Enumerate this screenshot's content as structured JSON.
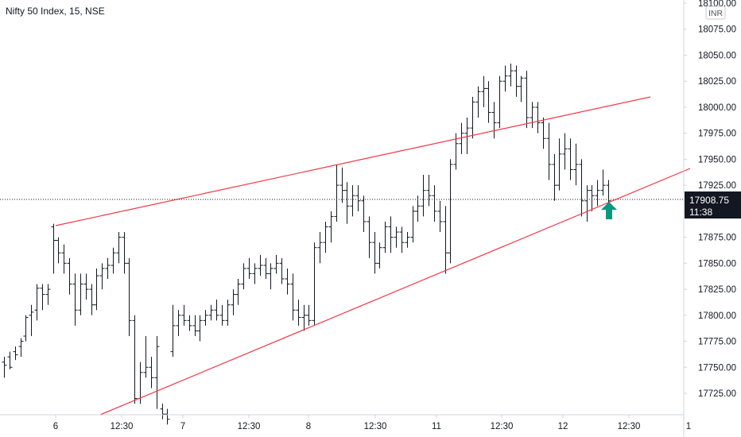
{
  "chart_data": {
    "type": "ohlc",
    "title": "Nifty 50 Index, 15, NSE",
    "currency": "INR",
    "last_price": "17908.75",
    "countdown": "11:38",
    "ylim": [
      17704,
      18103
    ],
    "y_ticks": [
      "18100.00",
      "18075.00",
      "18050.00",
      "18025.00",
      "18000.00",
      "17975.00",
      "17950.00",
      "17925.00",
      "17900.00",
      "17875.00",
      "17850.00",
      "17825.00",
      "17800.00",
      "17775.00",
      "17750.00",
      "17725.00"
    ],
    "x_ticks": [
      "6",
      "12:30",
      "7",
      "12:30",
      "8",
      "12:30",
      "11",
      "12:30",
      "12",
      "12:30",
      "1"
    ],
    "grid": false,
    "colors": {
      "bars": "#131722",
      "trendlines": "#f23645",
      "arrow": "#089981",
      "last_price_label": "#131722"
    },
    "annotation": "up-arrow-icon",
    "ohlc_bars": [
      [
        17755,
        17760,
        17740,
        17752
      ],
      [
        17760,
        17765,
        17748,
        17750
      ],
      [
        17765,
        17770,
        17757,
        17762
      ],
      [
        17770,
        17778,
        17760,
        17775
      ],
      [
        17780,
        17800,
        17775,
        17798
      ],
      [
        17800,
        17810,
        17780,
        17803
      ],
      [
        17805,
        17830,
        17795,
        17826
      ],
      [
        17826,
        17830,
        17805,
        17820
      ],
      [
        17820,
        17830,
        17810,
        17825
      ],
      [
        17885,
        17888,
        17840,
        17872
      ],
      [
        17872,
        17875,
        17850,
        17860
      ],
      [
        17860,
        17868,
        17840,
        17850
      ],
      [
        17850,
        17855,
        17820,
        17830
      ],
      [
        17830,
        17840,
        17790,
        17805
      ],
      [
        17805,
        17840,
        17800,
        17830
      ],
      [
        17830,
        17840,
        17815,
        17825
      ],
      [
        17825,
        17830,
        17800,
        17810
      ],
      [
        17810,
        17845,
        17805,
        17838
      ],
      [
        17838,
        17850,
        17825,
        17845
      ],
      [
        17845,
        17855,
        17835,
        17848
      ],
      [
        17848,
        17865,
        17840,
        17860
      ],
      [
        17860,
        17880,
        17850,
        17875
      ],
      [
        17875,
        17880,
        17840,
        17850
      ],
      [
        17850,
        17855,
        17780,
        17795
      ],
      [
        17795,
        17800,
        17715,
        17720
      ],
      [
        17720,
        17755,
        17715,
        17745
      ],
      [
        17745,
        17780,
        17740,
        17750
      ],
      [
        17750,
        17760,
        17730,
        17740
      ],
      [
        17740,
        17780,
        17710,
        17770
      ],
      [
        17710,
        17715,
        17700,
        17705
      ],
      [
        17705,
        17710,
        17695,
        17700
      ],
      [
        17765,
        17810,
        17760,
        17790
      ],
      [
        17790,
        17805,
        17780,
        17800
      ],
      [
        17800,
        17810,
        17790,
        17795
      ],
      [
        17795,
        17800,
        17785,
        17790
      ],
      [
        17790,
        17800,
        17780,
        17785
      ],
      [
        17785,
        17800,
        17775,
        17795
      ],
      [
        17795,
        17805,
        17790,
        17800
      ],
      [
        17800,
        17810,
        17795,
        17805
      ],
      [
        17805,
        17815,
        17795,
        17800
      ],
      [
        17800,
        17810,
        17790,
        17795
      ],
      [
        17795,
        17815,
        17790,
        17810
      ],
      [
        17810,
        17825,
        17800,
        17820
      ],
      [
        17820,
        17835,
        17810,
        17830
      ],
      [
        17830,
        17850,
        17825,
        17845
      ],
      [
        17845,
        17855,
        17835,
        17840
      ],
      [
        17840,
        17850,
        17830,
        17845
      ],
      [
        17845,
        17858,
        17838,
        17848
      ],
      [
        17848,
        17855,
        17835,
        17840
      ],
      [
        17840,
        17850,
        17825,
        17845
      ],
      [
        17845,
        17858,
        17840,
        17850
      ],
      [
        17850,
        17855,
        17830,
        17835
      ],
      [
        17835,
        17845,
        17820,
        17830
      ],
      [
        17830,
        17840,
        17795,
        17805
      ],
      [
        17805,
        17815,
        17790,
        17798
      ],
      [
        17798,
        17810,
        17785,
        17800
      ],
      [
        17800,
        17810,
        17790,
        17795
      ],
      [
        17795,
        17870,
        17790,
        17865
      ],
      [
        17865,
        17880,
        17850,
        17870
      ],
      [
        17870,
        17890,
        17860,
        17885
      ],
      [
        17885,
        17900,
        17870,
        17895
      ],
      [
        17895,
        17945,
        17890,
        17925
      ],
      [
        17925,
        17942,
        17908,
        17920
      ],
      [
        17920,
        17928,
        17888,
        17905
      ],
      [
        17905,
        17925,
        17895,
        17915
      ],
      [
        17915,
        17925,
        17900,
        17910
      ],
      [
        17910,
        17915,
        17880,
        17890
      ],
      [
        17890,
        17895,
        17855,
        17870
      ],
      [
        17870,
        17880,
        17840,
        17850
      ],
      [
        17850,
        17870,
        17845,
        17865
      ],
      [
        17865,
        17890,
        17860,
        17885
      ],
      [
        17885,
        17895,
        17860,
        17875
      ],
      [
        17875,
        17885,
        17865,
        17880
      ],
      [
        17880,
        17885,
        17860,
        17870
      ],
      [
        17870,
        17880,
        17865,
        17875
      ],
      [
        17875,
        17905,
        17870,
        17900
      ],
      [
        17900,
        17915,
        17890,
        17905
      ],
      [
        17905,
        17935,
        17895,
        17920
      ],
      [
        17920,
        17935,
        17905,
        17915
      ],
      [
        17915,
        17925,
        17890,
        17900
      ],
      [
        17900,
        17910,
        17880,
        17890
      ],
      [
        17890,
        17905,
        17840,
        17860
      ],
      [
        17860,
        17950,
        17850,
        17945
      ],
      [
        17945,
        17975,
        17940,
        17965
      ],
      [
        17965,
        17985,
        17955,
        17975
      ],
      [
        17975,
        17990,
        17955,
        17980
      ],
      [
        17980,
        18010,
        17970,
        18005
      ],
      [
        18005,
        18020,
        17990,
        18015
      ],
      [
        18015,
        18030,
        18000,
        18018
      ],
      [
        18018,
        18025,
        17985,
        17995
      ],
      [
        17995,
        18005,
        17970,
        17985
      ],
      [
        17985,
        18030,
        17980,
        18025
      ],
      [
        18025,
        18040,
        18015,
        18030
      ],
      [
        18030,
        18042,
        18020,
        18035
      ],
      [
        18035,
        18040,
        18010,
        18020
      ],
      [
        18020,
        18030,
        18005,
        18028
      ],
      [
        18028,
        18035,
        17980,
        17990
      ],
      [
        17990,
        18005,
        17980,
        18000
      ],
      [
        18000,
        18005,
        17975,
        17985
      ],
      [
        17985,
        17990,
        17960,
        17970
      ],
      [
        17970,
        17985,
        17930,
        17945
      ],
      [
        17945,
        17955,
        17910,
        17925
      ],
      [
        17925,
        17970,
        17920,
        17955
      ],
      [
        17955,
        17975,
        17940,
        17960
      ],
      [
        17960,
        17970,
        17930,
        17940
      ],
      [
        17940,
        17965,
        17925,
        17945
      ],
      [
        17945,
        17950,
        17895,
        17910
      ],
      [
        17910,
        17925,
        17890,
        17920
      ],
      [
        17920,
        17925,
        17900,
        17915
      ],
      [
        17915,
        17930,
        17905,
        17920
      ],
      [
        17920,
        17940,
        17915,
        17925
      ],
      [
        17925,
        17930,
        17908,
        17910
      ]
    ],
    "trendlines": [
      {
        "x1": 70,
        "y1": 284,
        "x2": 818,
        "y2": 122
      },
      {
        "x1": 126,
        "y1": 522,
        "x2": 870,
        "y2": 212
      }
    ],
    "last_price_level": 17908.75
  }
}
